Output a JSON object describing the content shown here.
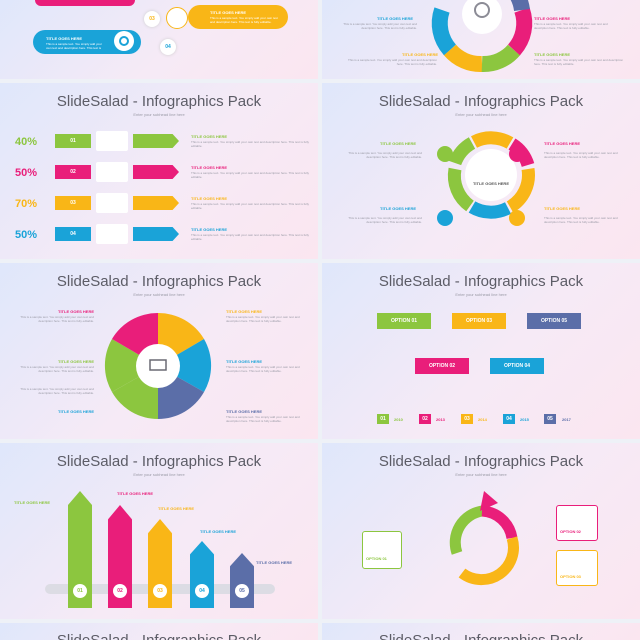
{
  "colors": {
    "green": "#8cc63f",
    "pink": "#e91e7a",
    "yellow": "#f9b617",
    "blue": "#1aa3d8",
    "slate": "#5b6ea8"
  },
  "deck_title": "SlideSalad - Infographics Pack",
  "subtitle": "Enter your subhead line here",
  "title_goes_here": "TITLE GOES HERE",
  "body_text": "This is a sample text. You simply add your own text and description here. This text is fully editable.",
  "slide1": {
    "steps": [
      "03",
      "04"
    ]
  },
  "slide3": {
    "rows": [
      {
        "pct": "40%",
        "num": "01"
      },
      {
        "pct": "50%",
        "num": "02"
      },
      {
        "pct": "70%",
        "num": "03"
      },
      {
        "pct": "50%",
        "num": "04"
      }
    ]
  },
  "slide4": {
    "center": "TITLE GOES HERE"
  },
  "slide6": {
    "options": [
      "OPTION 01",
      "OPTION 03",
      "OPTION 05",
      "OPTION 02",
      "OPTION 04"
    ],
    "years": [
      {
        "n": "01",
        "y": "2010"
      },
      {
        "n": "02",
        "y": "2013"
      },
      {
        "n": "03",
        "y": "2014"
      },
      {
        "n": "04",
        "y": "2015"
      },
      {
        "n": "05",
        "y": "2017"
      }
    ]
  },
  "slide7": {
    "nums": [
      "01",
      "02",
      "03",
      "04",
      "05"
    ]
  },
  "slide8": {
    "options": [
      "OPTION 01",
      "OPTION 02",
      "OPTION 03"
    ]
  }
}
